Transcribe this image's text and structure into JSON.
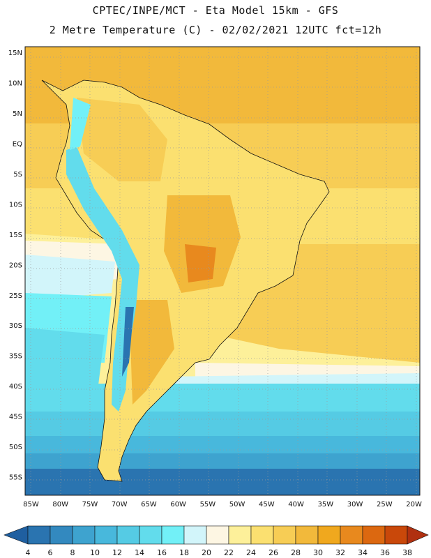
{
  "header": {
    "line1": "CPTEC/INPE/MCT -  Eta Model 15km - GFS",
    "line2": "2 Metre Temperature (C) - 02/02/2021 12UTC fct=12h"
  },
  "map": {
    "lon_range": [
      -86,
      -19
    ],
    "lat_range": [
      -58,
      16
    ],
    "lat_ticks": [
      "15N",
      "10N",
      "5N",
      "EQ",
      "5S",
      "10S",
      "15S",
      "20S",
      "25S",
      "30S",
      "35S",
      "40S",
      "45S",
      "50S",
      "55S"
    ],
    "lat_values": [
      15,
      10,
      5,
      0,
      -5,
      -10,
      -15,
      -20,
      -25,
      -30,
      -35,
      -40,
      -45,
      -50,
      -55
    ],
    "lon_ticks": [
      "85W",
      "80W",
      "75W",
      "70W",
      "65W",
      "60W",
      "55W",
      "50W",
      "45W",
      "40W",
      "35W",
      "30W",
      "25W",
      "20W"
    ],
    "lon_values": [
      -85,
      -80,
      -75,
      -70,
      -65,
      -60,
      -55,
      -50,
      -45,
      -40,
      -35,
      -30,
      -25,
      -20
    ],
    "gridlines": "dotted"
  },
  "colorbar": {
    "labels": [
      "4",
      "6",
      "8",
      "10",
      "12",
      "14",
      "16",
      "18",
      "20",
      "22",
      "24",
      "26",
      "28",
      "30",
      "32",
      "34",
      "36",
      "38"
    ],
    "colors": [
      "#1f5fa0",
      "#2a74b0",
      "#3389bf",
      "#3ea3cf",
      "#48b8dc",
      "#55cbe4",
      "#62dcec",
      "#72f0f7",
      "#d2f5fa",
      "#fdf6e3",
      "#fdf09a",
      "#fbe070",
      "#f7cd55",
      "#f2b93b",
      "#f0a81e",
      "#e8891e",
      "#dc6810",
      "#c9480a",
      "#b03010"
    ]
  }
}
